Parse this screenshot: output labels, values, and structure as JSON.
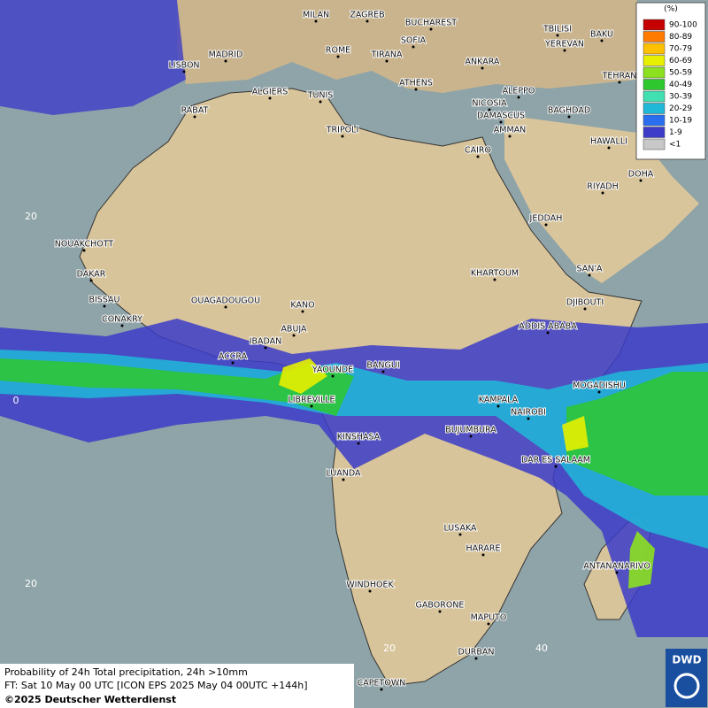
{
  "title": "Probability of 24h Total precipitation, 24h >10mm",
  "forecast_time": "FT: Sat 10 May 00 UTC [ICON EPS 2025 May 04 00UTC +144h]",
  "copyright": "©2025 Deutscher Wetterdienst",
  "logo": "DWD",
  "legend": {
    "unit": "(%)",
    "entries": [
      {
        "label": "90-100",
        "color": "#c40000"
      },
      {
        "label": "80-89",
        "color": "#ff7b00"
      },
      {
        "label": "70-79",
        "color": "#ffc000"
      },
      {
        "label": "60-69",
        "color": "#e6f000"
      },
      {
        "label": "50-59",
        "color": "#8ce020"
      },
      {
        "label": "40-49",
        "color": "#2ec82e"
      },
      {
        "label": "30-39",
        "color": "#40e0b0"
      },
      {
        "label": "20-29",
        "color": "#20b8d8"
      },
      {
        "label": "10-19",
        "color": "#2a6ef0"
      },
      {
        "label": "1-9",
        "color": "#3c3cc8"
      },
      {
        "label": "<1",
        "color": "#c8c8c8"
      }
    ]
  },
  "grid_labels": [
    20,
    0,
    20,
    20,
    40
  ],
  "cities": [
    "MILAN",
    "ZAGREB",
    "BUCHAREST",
    "TBILISI",
    "BAKU",
    "MADRID",
    "ROME",
    "SOFIA",
    "YEREVAN",
    "LISBON",
    "TIRANA",
    "ANKARA",
    "TEHRAN",
    "ALGIERS",
    "TUNIS",
    "ATHENS",
    "ALEPPO",
    "RABAT",
    "NICOSIA",
    "BAGHDAD",
    "DAMASCUS",
    "AMMAN",
    "TRIPOLI",
    "HAWALLI",
    "CAIRO",
    "DOHA",
    "RIYADH",
    "JEDDAH",
    "NOUAKCHOTT",
    "DAKAR",
    "KHARTOUM",
    "SAN'A",
    "BISSAU",
    "OUAGADOUGOU",
    "KANO",
    "DJIBOUTI",
    "CONAKRY",
    "ABUJA",
    "ADDIS ABABA",
    "IBADAN",
    "ACCRA",
    "YAOUNDE",
    "BANGUI",
    "MOGADISHU",
    "LIBREVILLE",
    "KAMPALA",
    "NAIROBI",
    "BUJUMBURA",
    "KINSHASA",
    "DAR ES SALAAM",
    "LUANDA",
    "LUSAKA",
    "HARARE",
    "ANTANANARIVO",
    "WINDHOEK",
    "GABORONE",
    "MAPUTO",
    "DURBAN",
    "CAPETOWN"
  ]
}
